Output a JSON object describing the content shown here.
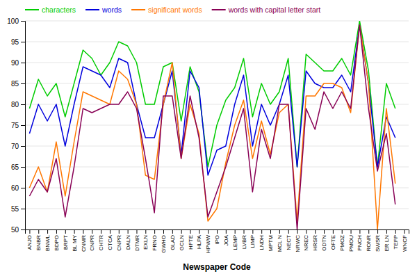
{
  "chart_data": {
    "type": "line",
    "xlabel": "Newspaper Code",
    "categories": [
      "ANJO",
      "BNBR",
      "BNWL",
      "BDPO",
      "BRPT",
      "BL MY",
      "CNMR",
      "CNPR",
      "CHTR",
      "CTCA",
      "CNPR",
      "DALN",
      "DTMR",
      "EXLN",
      "FRNO",
      "GWHO",
      "GLAD",
      "GCLN",
      "HFTE",
      "HLPA",
      "HPWW",
      "IPO",
      "JOA",
      "LEMP",
      "LVBR",
      "LIMP",
      "LNDH",
      "MPTM",
      "MCL N",
      "NECT",
      "NRWC",
      "NREC",
      "HRSR",
      "ODTN",
      "OFTE",
      "PMOZ",
      "PMOU",
      "PNCH",
      "RONR",
      "SWSR",
      "ER LN",
      "TEFP",
      "WNCF"
    ],
    "series": [
      {
        "name": "characters",
        "color": "#00cc00",
        "values": [
          79,
          86,
          82,
          85,
          77,
          85,
          93,
          91,
          87,
          90,
          95,
          94,
          90,
          80,
          80,
          89,
          90,
          76,
          89,
          83,
          65,
          75,
          81,
          84,
          91,
          77,
          85,
          80,
          83,
          91,
          65,
          92,
          90,
          88,
          88,
          91,
          87,
          100,
          88,
          65,
          85,
          79,
          null
        ]
      },
      {
        "name": "words",
        "color": "#0000dd",
        "values": [
          73,
          80,
          76,
          80,
          70,
          80,
          89,
          88,
          87,
          84,
          91,
          90,
          80,
          72,
          72,
          80,
          88,
          68,
          88,
          84,
          63,
          69,
          70,
          80,
          87,
          70,
          80,
          75,
          80,
          87,
          65,
          88,
          85,
          84,
          84,
          87,
          83,
          99,
          85,
          65,
          77,
          72,
          null
        ]
      },
      {
        "name": "significant words",
        "color": "#ff7700",
        "values": [
          60,
          65,
          59,
          71,
          58,
          71,
          83,
          82,
          81,
          80,
          88,
          86,
          80,
          63,
          62,
          80,
          90,
          67,
          80,
          73,
          52,
          55,
          66,
          75,
          81,
          67,
          76,
          68,
          78,
          80,
          52,
          82,
          82,
          85,
          85,
          84,
          78,
          99,
          85,
          50,
          79,
          61,
          null
        ]
      },
      {
        "name": "words with capital letter start",
        "color": "#880055",
        "values": [
          58,
          62,
          59,
          67,
          53,
          65,
          79,
          78,
          79,
          80,
          80,
          83,
          79,
          67,
          54,
          82,
          82,
          67,
          82,
          72,
          53,
          59,
          65,
          72,
          79,
          59,
          74,
          67,
          80,
          80,
          50,
          79,
          74,
          83,
          79,
          83,
          79,
          99,
          79,
          64,
          73,
          56,
          null
        ]
      }
    ],
    "ylim": [
      50.0,
      100.0
    ],
    "yticks": [
      50.0,
      55.0,
      60.0,
      65.0,
      70.0,
      75.0,
      80.0,
      85.0,
      90.0,
      95.0,
      100.0
    ],
    "grid": true,
    "legend": "top-left"
  }
}
